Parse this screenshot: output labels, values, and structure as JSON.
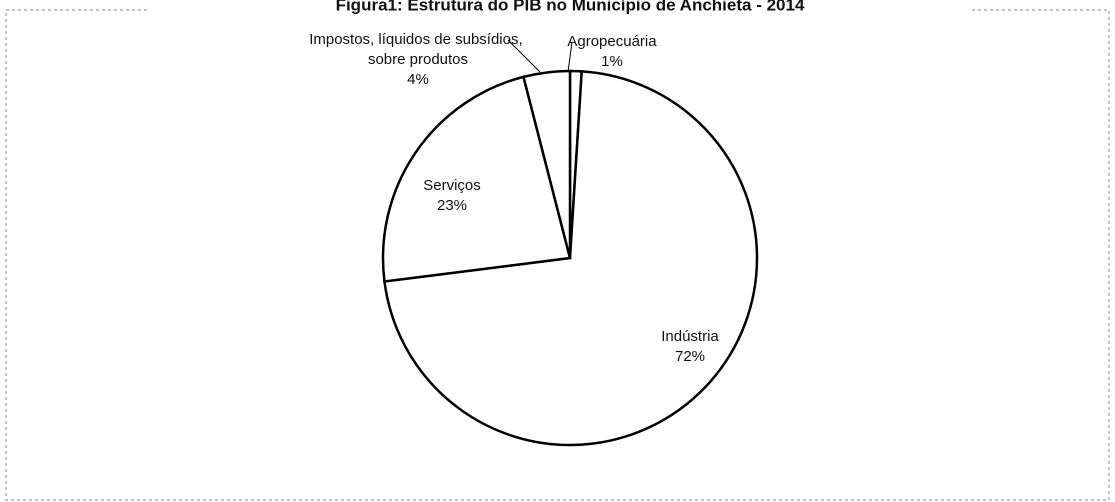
{
  "chart_data": {
    "type": "pie",
    "title": "Figura1: Estrutura do PIB no Município de Anchieta - 2014",
    "categories": [
      "Agropecuária",
      "Indústria",
      "Serviços",
      "Impostos, líquidos de subsídios, sobre produtos"
    ],
    "values": [
      1,
      72,
      23,
      4
    ],
    "value_labels": [
      "1%",
      "72%",
      "23%",
      "4%"
    ],
    "colors": [
      "#ffffff",
      "#ffffff",
      "#ffffff",
      "#ffffff"
    ]
  }
}
